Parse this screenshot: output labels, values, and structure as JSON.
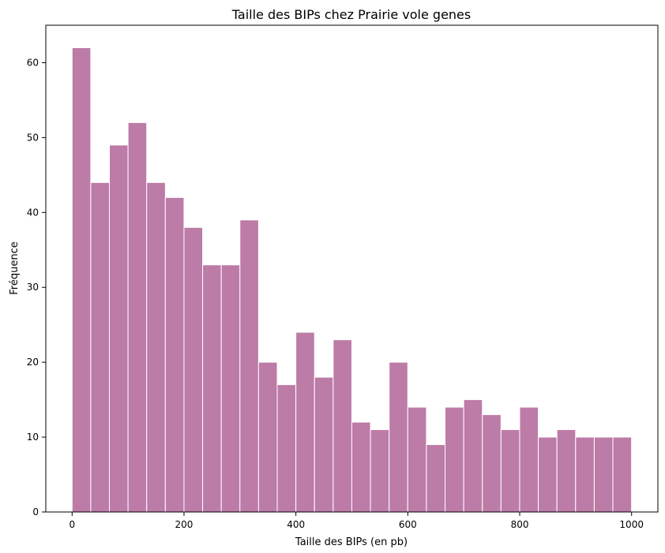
{
  "chart_data": {
    "type": "bar",
    "title": "Taille des BIPs chez Prairie vole genes",
    "xlabel": "Taille des BIPs (en pb)",
    "ylabel": "Fréquence",
    "bin_start": 0,
    "bin_width": 33.33,
    "values": [
      62,
      44,
      49,
      52,
      44,
      42,
      38,
      33,
      33,
      39,
      20,
      17,
      24,
      18,
      23,
      12,
      11,
      20,
      14,
      9,
      14,
      15,
      13,
      11,
      14,
      10,
      11,
      10,
      10,
      10
    ],
    "xlim": [
      -47,
      1047
    ],
    "ylim": [
      0,
      65
    ],
    "xticks": [
      0,
      200,
      400,
      600,
      800,
      1000
    ],
    "yticks": [
      0,
      10,
      20,
      30,
      40,
      50,
      60
    ],
    "bar_color": "#bd7ba7",
    "edge_color": "#ffffff",
    "grid": false
  }
}
